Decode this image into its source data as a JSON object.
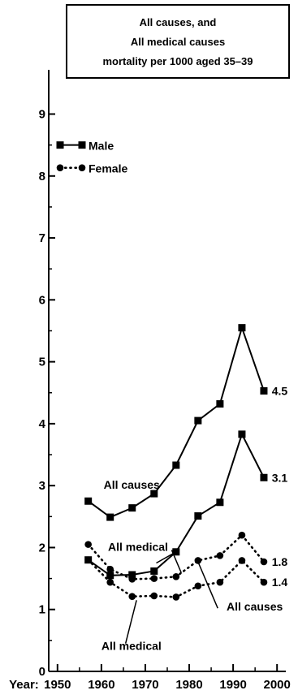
{
  "chart_data": {
    "type": "line",
    "title_lines": [
      "All causes, and",
      "All medical causes",
      "mortality per 1000 aged 35–39"
    ],
    "xlabel": "",
    "ylabel": "",
    "x_prefix": "Year:",
    "xlim": [
      1948,
      2002
    ],
    "ylim": [
      0,
      9.4
    ],
    "x_ticks": [
      1950,
      1960,
      1970,
      1980,
      1990,
      2000
    ],
    "y_ticks": [
      0,
      1,
      2,
      3,
      4,
      5,
      6,
      7,
      8,
      9
    ],
    "x": [
      1957,
      1962,
      1967,
      1972,
      1977,
      1982,
      1987,
      1992,
      1997
    ],
    "legend": {
      "position": "top-left",
      "entries": [
        {
          "label": "Male",
          "marker": "square",
          "dash": "solid"
        },
        {
          "label": "Female",
          "marker": "circle",
          "dash": "dotted"
        }
      ]
    },
    "series": [
      {
        "key": "male_all",
        "marker": "square",
        "dash": "solid",
        "values": [
          2.75,
          2.49,
          2.64,
          2.87,
          3.33,
          4.05,
          4.32,
          5.55,
          4.53
        ]
      },
      {
        "key": "male_medical",
        "marker": "square",
        "dash": "solid",
        "values": [
          1.8,
          1.55,
          1.56,
          1.62,
          1.93,
          2.51,
          2.73,
          3.83,
          3.13
        ]
      },
      {
        "key": "female_all",
        "marker": "circle",
        "dash": "dotted",
        "values": [
          2.05,
          1.65,
          1.49,
          1.5,
          1.53,
          1.79,
          1.87,
          2.2,
          1.77
        ]
      },
      {
        "key": "female_medical",
        "marker": "circle",
        "dash": "dotted",
        "values": [
          1.8,
          1.44,
          1.21,
          1.22,
          1.2,
          1.38,
          1.44,
          1.79,
          1.44
        ]
      }
    ],
    "annotations": [
      {
        "text": "All causes",
        "x": 1960.5,
        "y": 2.95
      },
      {
        "text": "All medical",
        "x": 1961.5,
        "y": 1.95
      },
      {
        "text": "All causes",
        "x": 1988.5,
        "y": 0.98
      },
      {
        "text": "All medical",
        "x": 1960.0,
        "y": 0.35
      }
    ],
    "end_labels": [
      {
        "text": "4.5",
        "x": 1998.8,
        "y": 4.53
      },
      {
        "text": "3.1",
        "x": 1998.8,
        "y": 3.13
      },
      {
        "text": "1.8",
        "x": 1998.8,
        "y": 1.77
      },
      {
        "text": "1.4",
        "x": 1998.8,
        "y": 1.44
      }
    ]
  }
}
